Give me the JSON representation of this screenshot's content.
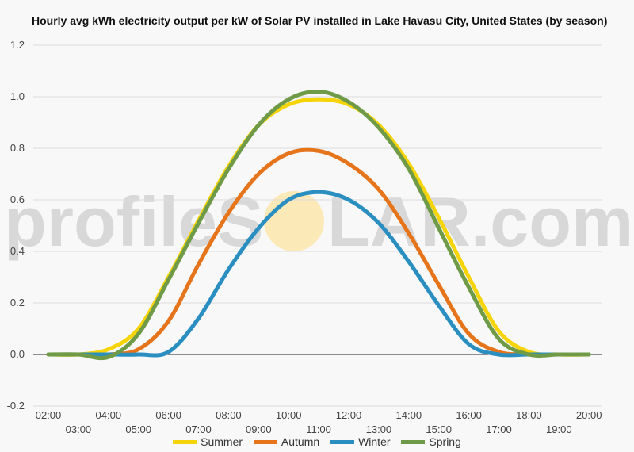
{
  "watermark": {
    "left": "profileS",
    "right": "LAR.com"
  },
  "colors": {
    "summer": "#f5d40a",
    "autumn": "#e6741b",
    "winter": "#2a8fc0",
    "spring": "#6f9a48"
  },
  "chart_data": {
    "type": "line",
    "title": "Hourly avg kWh electricity output per kW of Solar PV installed in Lake Havasu City, United States (by season)",
    "xlabel": "",
    "ylabel": "",
    "ylim": [
      -0.2,
      1.2
    ],
    "yticks": [
      "-0.2",
      "0.0",
      "0.2",
      "0.4",
      "0.6",
      "0.8",
      "1.0",
      "1.2"
    ],
    "x": [
      "02:00",
      "03:00",
      "04:00",
      "05:00",
      "06:00",
      "07:00",
      "08:00",
      "09:00",
      "10:00",
      "11:00",
      "12:00",
      "13:00",
      "14:00",
      "15:00",
      "16:00",
      "17:00",
      "18:00",
      "19:00",
      "20:00"
    ],
    "grid": true,
    "legend_position": "bottom",
    "series": [
      {
        "name": "Summer",
        "color": "#f5d40a",
        "values": [
          0,
          0,
          0.02,
          0.1,
          0.3,
          0.52,
          0.73,
          0.89,
          0.97,
          0.99,
          0.97,
          0.89,
          0.74,
          0.53,
          0.3,
          0.09,
          0.01,
          0,
          0
        ]
      },
      {
        "name": "Autumn",
        "color": "#e6741b",
        "values": [
          0,
          0,
          0,
          0.02,
          0.13,
          0.35,
          0.55,
          0.7,
          0.78,
          0.79,
          0.74,
          0.64,
          0.47,
          0.27,
          0.08,
          0.01,
          0,
          0,
          0
        ]
      },
      {
        "name": "Winter",
        "color": "#2a8fc0",
        "values": [
          0,
          0,
          0,
          0,
          0.01,
          0.14,
          0.33,
          0.49,
          0.6,
          0.63,
          0.6,
          0.51,
          0.36,
          0.19,
          0.04,
          0,
          0,
          0,
          0
        ]
      },
      {
        "name": "Spring",
        "color": "#6f9a48",
        "values": [
          0,
          0,
          -0.01,
          0.08,
          0.29,
          0.51,
          0.72,
          0.89,
          0.99,
          1.02,
          0.98,
          0.88,
          0.72,
          0.49,
          0.26,
          0.06,
          0,
          0,
          0
        ]
      }
    ]
  }
}
